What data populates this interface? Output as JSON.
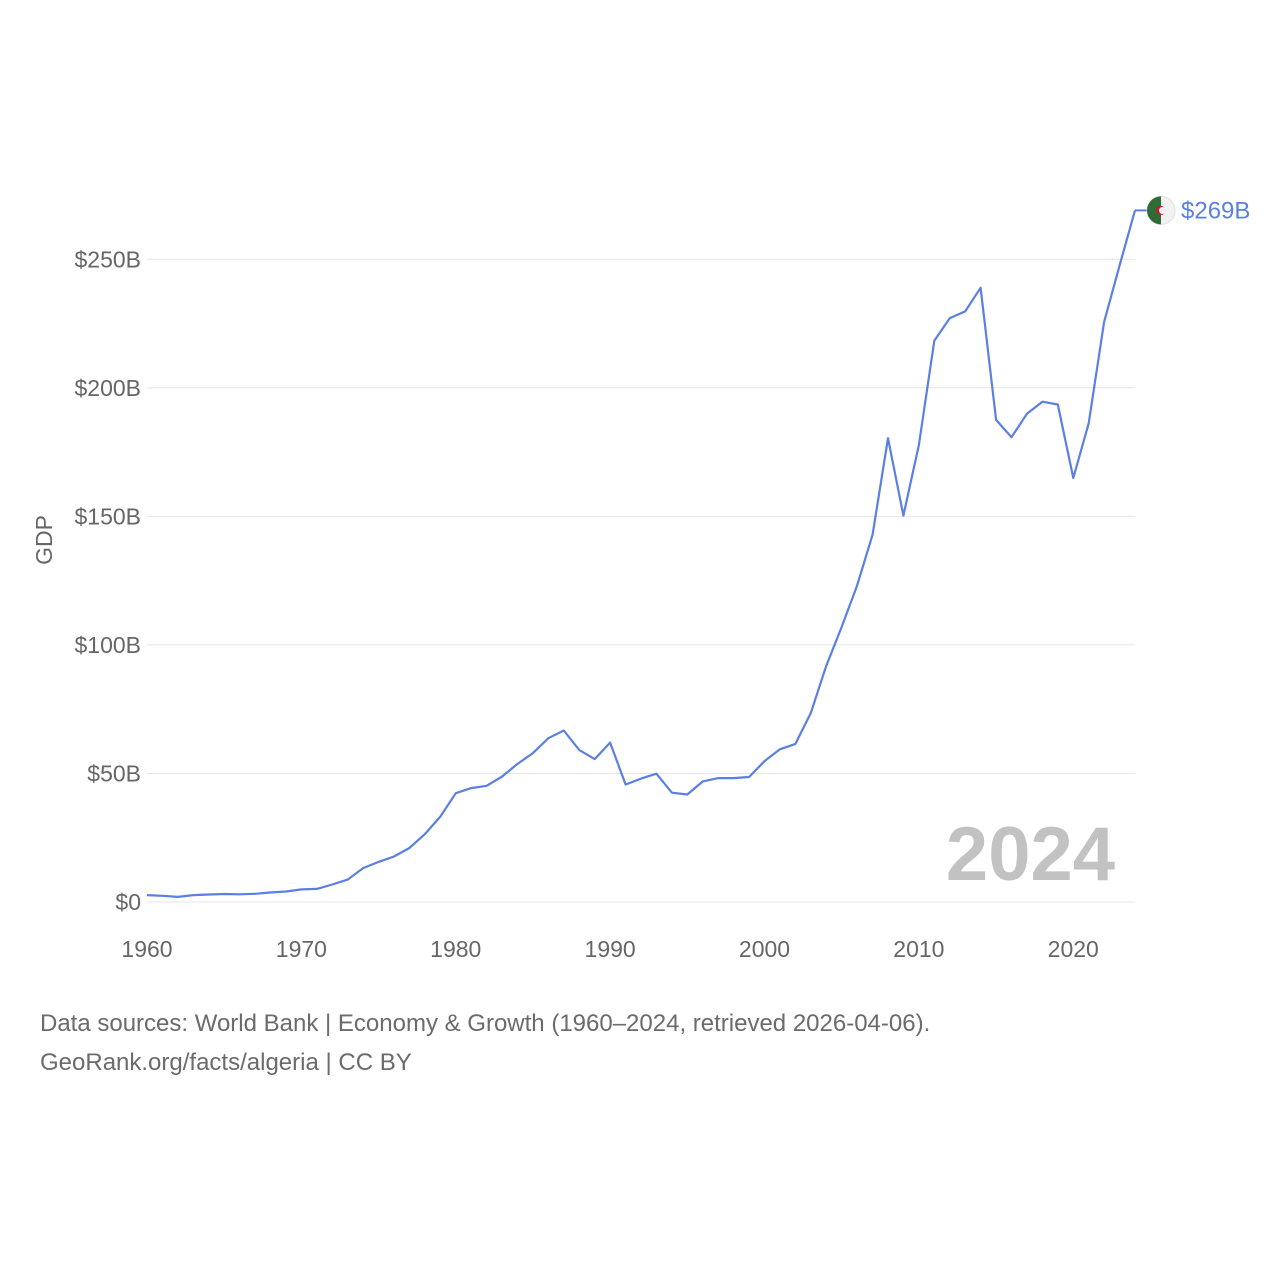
{
  "chart_data": {
    "type": "line",
    "title": "",
    "ylabel": "GDP",
    "xlabel": "",
    "xlim": [
      1960,
      2024
    ],
    "ylim": [
      0,
      270
    ],
    "unit": "billion US$",
    "x_ticks": [
      1960,
      1970,
      1980,
      1990,
      2000,
      2010,
      2020
    ],
    "x_tick_labels": [
      "1960",
      "1970",
      "1980",
      "1990",
      "2000",
      "2010",
      "2020"
    ],
    "y_ticks": [
      0,
      50,
      100,
      150,
      200,
      250
    ],
    "y_tick_labels": [
      "$0",
      "$50B",
      "$100B",
      "$150B",
      "$200B",
      "$250B"
    ],
    "grid": true,
    "series": [
      {
        "name": "Algeria",
        "color": "#5b7fe3",
        "end_label": "$269B",
        "x": [
          1960,
          1961,
          1962,
          1963,
          1964,
          1965,
          1966,
          1967,
          1968,
          1969,
          1970,
          1971,
          1972,
          1973,
          1974,
          1975,
          1976,
          1977,
          1978,
          1979,
          1980,
          1981,
          1982,
          1983,
          1984,
          1985,
          1986,
          1987,
          1988,
          1989,
          1990,
          1991,
          1992,
          1993,
          1994,
          1995,
          1996,
          1997,
          1998,
          1999,
          2000,
          2001,
          2002,
          2003,
          2004,
          2005,
          2006,
          2007,
          2008,
          2009,
          2010,
          2011,
          2012,
          2013,
          2014,
          2015,
          2016,
          2017,
          2018,
          2019,
          2020,
          2021,
          2022,
          2023,
          2024
        ],
        "values": [
          2.7,
          2.4,
          2.0,
          2.7,
          2.9,
          3.1,
          3.0,
          3.2,
          3.7,
          4.1,
          4.9,
          5.1,
          6.8,
          8.7,
          13.2,
          15.6,
          17.7,
          21.0,
          26.4,
          33.2,
          42.3,
          44.3,
          45.2,
          48.8,
          53.7,
          57.9,
          63.7,
          66.7,
          59.1,
          55.6,
          62.0,
          45.7,
          48.0,
          49.9,
          42.5,
          41.8,
          46.9,
          48.2,
          48.2,
          48.6,
          54.8,
          59.4,
          61.5,
          73.5,
          91.9,
          107.0,
          123.1,
          142.9,
          180.4,
          150.3,
          177.8,
          218.3,
          227.1,
          229.7,
          238.9,
          187.5,
          180.8,
          189.9,
          194.6,
          193.5,
          164.9,
          186.2,
          225.6,
          247.6,
          269.0
        ]
      }
    ],
    "current_year_label": "2024"
  },
  "footer": {
    "line1": "Data sources: World Bank | Economy & Growth (1960–2024, retrieved 2026-04-06).",
    "line2": "GeoRank.org/facts/algeria | CC BY"
  },
  "colors": {
    "line": "#5b7fe3",
    "grid": "#e6e6e6",
    "flag_green": "#2f6b35",
    "flag_white": "#f2f2f2",
    "flag_red": "#d21034"
  }
}
